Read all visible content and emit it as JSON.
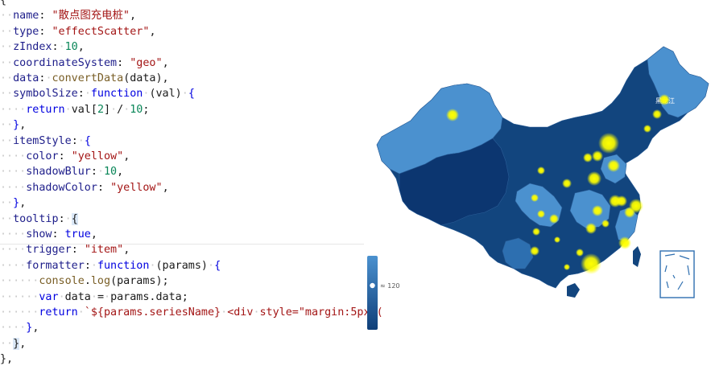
{
  "code_lines": [
    [
      [
        "pn",
        "{"
      ]
    ],
    [
      [
        "dot",
        "··"
      ],
      [
        "key",
        "name"
      ],
      [
        "pn",
        ": "
      ],
      [
        "str",
        "\"散点图充电桩\""
      ],
      [
        "pn",
        ","
      ]
    ],
    [
      [
        "dot",
        "··"
      ],
      [
        "key",
        "type"
      ],
      [
        "pn",
        ": "
      ],
      [
        "str",
        "\"effectScatter\""
      ],
      [
        "pn",
        ","
      ]
    ],
    [
      [
        "dot",
        "··"
      ],
      [
        "key",
        "zIndex"
      ],
      [
        "pn",
        ":"
      ],
      [
        "dot",
        "·"
      ],
      [
        "num",
        "10"
      ],
      [
        "pn",
        ","
      ]
    ],
    [
      [
        "dot",
        "··"
      ],
      [
        "key",
        "coordinateSystem"
      ],
      [
        "pn",
        ": "
      ],
      [
        "str",
        "\"geo\""
      ],
      [
        "pn",
        ","
      ]
    ],
    [
      [
        "dot",
        "··"
      ],
      [
        "key",
        "data"
      ],
      [
        "pn",
        ":"
      ],
      [
        "dot",
        "·"
      ],
      [
        "fn",
        "convertData"
      ],
      [
        "pn",
        "(data),"
      ]
    ],
    [
      [
        "dot",
        "··"
      ],
      [
        "key",
        "symbolSize"
      ],
      [
        "pn",
        ":"
      ],
      [
        "dot",
        "·"
      ],
      [
        "kw",
        "function"
      ],
      [
        "dot",
        "·"
      ],
      [
        "pn",
        "(val)"
      ],
      [
        "dot",
        "·"
      ],
      [
        "kw",
        "{"
      ]
    ],
    [
      [
        "dot",
        "····"
      ],
      [
        "kw",
        "return"
      ],
      [
        "dot",
        "·"
      ],
      [
        "pn",
        "val["
      ],
      [
        "num",
        "2"
      ],
      [
        "pn",
        "]"
      ],
      [
        "dot",
        "·"
      ],
      [
        "pn",
        "/"
      ],
      [
        "dot",
        "·"
      ],
      [
        "num",
        "10"
      ],
      [
        "pn",
        ";"
      ]
    ],
    [
      [
        "dot",
        "··"
      ],
      [
        "kw",
        "}"
      ],
      [
        "pn",
        ","
      ]
    ],
    [
      [
        "dot",
        "··"
      ],
      [
        "key",
        "itemStyle"
      ],
      [
        "pn",
        ":"
      ],
      [
        "dot",
        "·"
      ],
      [
        "kw",
        "{"
      ]
    ],
    [
      [
        "dot",
        "····"
      ],
      [
        "key",
        "color"
      ],
      [
        "pn",
        ": "
      ],
      [
        "str",
        "\"yellow\""
      ],
      [
        "pn",
        ","
      ]
    ],
    [
      [
        "dot",
        "····"
      ],
      [
        "key",
        "shadowBlur"
      ],
      [
        "pn",
        ":"
      ],
      [
        "dot",
        "·"
      ],
      [
        "num",
        "10"
      ],
      [
        "pn",
        ","
      ]
    ],
    [
      [
        "dot",
        "····"
      ],
      [
        "key",
        "shadowColor"
      ],
      [
        "pn",
        ": "
      ],
      [
        "str",
        "\"yellow\""
      ],
      [
        "pn",
        ","
      ]
    ],
    [
      [
        "dot",
        "··"
      ],
      [
        "kw",
        "}"
      ],
      [
        "pn",
        ","
      ]
    ],
    [
      [
        "dot",
        "··"
      ],
      [
        "key",
        "tooltip"
      ],
      [
        "pn",
        ":"
      ],
      [
        "dot",
        "·"
      ],
      [
        "hl",
        "{"
      ]
    ],
    [
      [
        "dot",
        "····"
      ],
      [
        "key",
        "show"
      ],
      [
        "pn",
        ": "
      ],
      [
        "kw",
        "true"
      ],
      [
        "pn",
        ","
      ]
    ],
    [
      [
        "dot",
        "····"
      ],
      [
        "key",
        "trigger"
      ],
      [
        "pn",
        ": "
      ],
      [
        "str",
        "\"item\""
      ],
      [
        "pn",
        ","
      ]
    ],
    [
      [
        "dot",
        "····"
      ],
      [
        "key",
        "formatter"
      ],
      [
        "pn",
        ":"
      ],
      [
        "dot",
        "·"
      ],
      [
        "kw",
        "function"
      ],
      [
        "dot",
        "·"
      ],
      [
        "pn",
        "(params)"
      ],
      [
        "dot",
        "·"
      ],
      [
        "kw",
        "{"
      ]
    ],
    [
      [
        "dot",
        "······"
      ],
      [
        "fn",
        "console"
      ],
      [
        "pn",
        "."
      ],
      [
        "fn",
        "log"
      ],
      [
        "pn",
        "(params);"
      ]
    ],
    [
      [
        "dot",
        "······"
      ],
      [
        "kw",
        "var"
      ],
      [
        "dot",
        "·"
      ],
      [
        "pn",
        "data"
      ],
      [
        "dot",
        "·"
      ],
      [
        "pn",
        "="
      ],
      [
        "dot",
        "·"
      ],
      [
        "pn",
        "params.data;"
      ]
    ],
    [
      [
        "dot",
        "······"
      ],
      [
        "kw",
        "return"
      ],
      [
        "dot",
        "·"
      ],
      [
        "str",
        "`${params.seriesName}"
      ],
      [
        "dot",
        "·"
      ],
      [
        "str",
        "<div"
      ],
      [
        "dot",
        "·"
      ],
      [
        "str",
        "style=\"margin:5px"
      ],
      [
        "dot",
        "·"
      ],
      [
        "str",
        "("
      ]
    ],
    [
      [
        "dot",
        "····"
      ],
      [
        "kw",
        "}"
      ],
      [
        "pn",
        ","
      ]
    ],
    [
      [
        "dot",
        "··"
      ],
      [
        "hl",
        "}"
      ],
      [
        "pn",
        ","
      ]
    ],
    [
      [
        "pn",
        "},"
      ]
    ]
  ],
  "visual_map": {
    "label": "≈ 120"
  },
  "map": {
    "land_color": "#12457e",
    "light_region_color": "#4b91cf",
    "island_box_stroke": "#2f6fb0",
    "scatter_color": "yellow",
    "city_label": "黑龙江"
  }
}
